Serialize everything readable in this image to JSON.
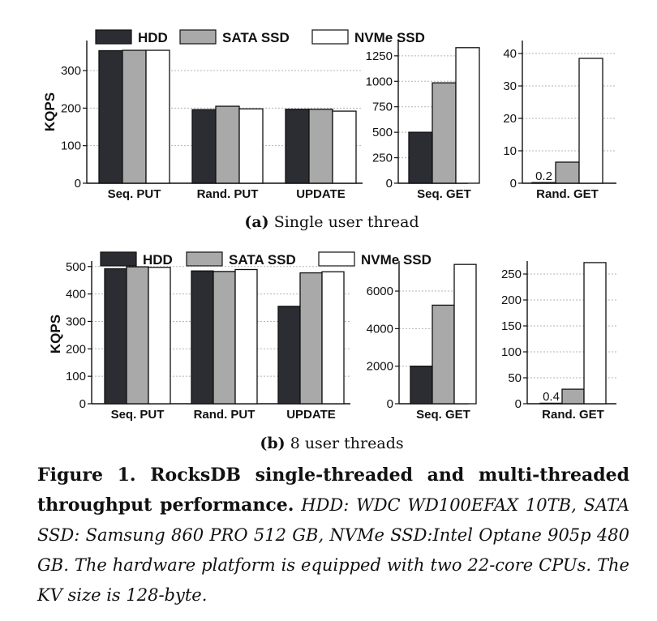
{
  "legend": [
    "HDD",
    "SATA SSD",
    "NVMe SSD"
  ],
  "colors": {
    "HDD": "#2b2d33",
    "SATA SSD": "#a9a9a9",
    "NVMe SSD": "#ffffff"
  },
  "ylabel": "KQPS",
  "subcaptions": [
    {
      "label": "(a)",
      "text": "Single user thread"
    },
    {
      "label": "(b)",
      "text": "8 user threads"
    }
  ],
  "caption": {
    "title": "Figure 1. RocksDB single-threaded and multi-threaded throughput performance.",
    "text": "HDD: WDC WD100EFAX 10TB, SATA SSD: Samsung 860 PRO 512 GB, NVMe SSD:Intel Optane 905p 480 GB. The hardware platform is equipped with two 22-core CPUs. The KV size is 128-byte."
  },
  "chart_data": [
    {
      "type": "bar",
      "group": "a",
      "categories": [
        "Seq. PUT",
        "Rand. PUT",
        "UPDATE"
      ],
      "series": [
        {
          "name": "HDD",
          "values": [
            353,
            196,
            197
          ]
        },
        {
          "name": "SATA SSD",
          "values": [
            354,
            205,
            197
          ]
        },
        {
          "name": "NVMe SSD",
          "values": [
            354,
            198,
            192
          ]
        }
      ],
      "ylim": [
        0,
        380
      ],
      "yticks": [
        0,
        100,
        200,
        300
      ],
      "ylabel": "KQPS",
      "grid": true,
      "legend": "top"
    },
    {
      "type": "bar",
      "group": "a",
      "categories": [
        "Seq. GET"
      ],
      "series": [
        {
          "name": "HDD",
          "values": [
            500
          ]
        },
        {
          "name": "SATA SSD",
          "values": [
            985
          ]
        },
        {
          "name": "NVMe SSD",
          "values": [
            1330
          ]
        }
      ],
      "ylim": [
        0,
        1400
      ],
      "yticks": [
        0,
        250,
        500,
        750,
        1000,
        1250
      ],
      "grid": true
    },
    {
      "type": "bar",
      "group": "a",
      "categories": [
        "Rand. GET"
      ],
      "series": [
        {
          "name": "HDD",
          "values": [
            0.2
          ]
        },
        {
          "name": "SATA SSD",
          "values": [
            6.5
          ]
        },
        {
          "name": "NVMe SSD",
          "values": [
            38.5
          ]
        }
      ],
      "ylim": [
        0,
        44
      ],
      "yticks": [
        0,
        10,
        20,
        30,
        40
      ],
      "grid": true,
      "annotations": [
        {
          "text": "0.2",
          "series": "HDD"
        }
      ]
    },
    {
      "type": "bar",
      "group": "b",
      "categories": [
        "Seq. PUT",
        "Rand. PUT",
        "UPDATE"
      ],
      "series": [
        {
          "name": "HDD",
          "values": [
            492,
            484,
            355
          ]
        },
        {
          "name": "SATA SSD",
          "values": [
            499,
            482,
            477
          ]
        },
        {
          "name": "NVMe SSD",
          "values": [
            497,
            489,
            481
          ]
        }
      ],
      "ylim": [
        0,
        520
      ],
      "yticks": [
        0,
        100,
        200,
        300,
        400,
        500
      ],
      "ylabel": "KQPS",
      "grid": true,
      "legend": "top"
    },
    {
      "type": "bar",
      "group": "b",
      "categories": [
        "Seq. GET"
      ],
      "series": [
        {
          "name": "HDD",
          "values": [
            2000
          ]
        },
        {
          "name": "SATA SSD",
          "values": [
            5250
          ]
        },
        {
          "name": "NVMe SSD",
          "values": [
            7420
          ]
        }
      ],
      "ylim": [
        0,
        7600
      ],
      "yticks": [
        0,
        2000,
        4000,
        6000
      ],
      "grid": true
    },
    {
      "type": "bar",
      "group": "b",
      "categories": [
        "Rand. GET"
      ],
      "series": [
        {
          "name": "HDD",
          "values": [
            0.4
          ]
        },
        {
          "name": "SATA SSD",
          "values": [
            28
          ]
        },
        {
          "name": "NVMe SSD",
          "values": [
            272
          ]
        }
      ],
      "ylim": [
        0,
        275
      ],
      "yticks": [
        0,
        50,
        100,
        150,
        200,
        250
      ],
      "grid": true,
      "annotations": [
        {
          "text": "0.4",
          "series": "HDD"
        }
      ]
    }
  ]
}
